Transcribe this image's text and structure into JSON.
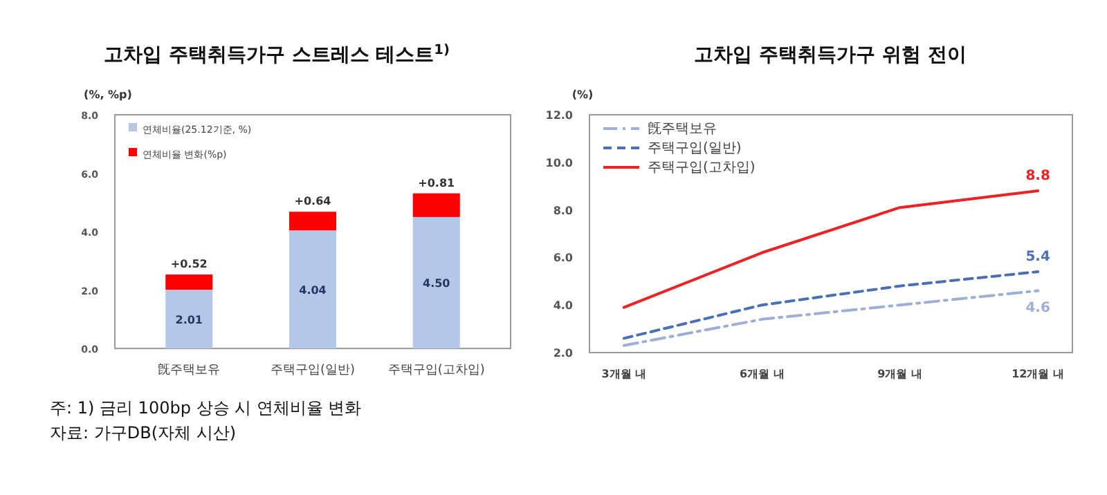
{
  "chart_data": [
    {
      "type": "bar",
      "stacked": true,
      "title": "고차입 주택취득가구 스트레스 테스트$^{1)}$",
      "ylabel": "(%, %p)",
      "categories": [
        "旣주택보유",
        "주택구입(일반)",
        "주택구입(고차입)"
      ],
      "series": [
        {
          "name": "연체비율(25.12기준, %)",
          "color": "#b4c7e7",
          "values": [
            2.01,
            4.04,
            4.5
          ],
          "value_labels": [
            "2.01",
            "4.04",
            "4.50"
          ]
        },
        {
          "name": "연체비율 변화(%p)",
          "color": "#ff0000",
          "values": [
            0.52,
            0.64,
            0.81
          ],
          "value_labels": [
            "+0.52",
            "+0.64",
            "+0.81"
          ]
        }
      ],
      "ylim": [
        0,
        8
      ],
      "yticks": [
        {
          "value": 0,
          "label": "0.0"
        },
        {
          "value": 2,
          "label": "2.0"
        },
        {
          "value": 4,
          "label": "4.0"
        },
        {
          "value": 6,
          "label": "6.0"
        },
        {
          "value": 8,
          "label": "8.0"
        }
      ],
      "legend": "top left",
      "grid": false,
      "annotations": [
        "주: 1) 금리 100bp 상승 시 연체비율 변화",
        "자료: 가구DB(자체 시산)"
      ]
    },
    {
      "type": "line",
      "title": "고차입 주택취득가구 위험 전이",
      "ylabel": "(%)",
      "categories": [
        "3개월 내",
        "6개월 내",
        "9개월 내",
        "12개월 내"
      ],
      "series": [
        {
          "name": "旣주택보유",
          "color": "#9dafd6",
          "line_style": "dashdot",
          "values": [
            2.3,
            3.4,
            4.0,
            4.6
          ],
          "value_labels": [
            null,
            null,
            null,
            "4.6"
          ]
        },
        {
          "name": "주택구입(일반)",
          "color": "#4a6fb5",
          "line_style": "dashed",
          "values": [
            2.6,
            4.0,
            4.8,
            5.4
          ],
          "value_labels": [
            null,
            null,
            null,
            "5.4"
          ]
        },
        {
          "name": "주택구입(고차입)",
          "color": "#ee2222",
          "line_style": "solid",
          "values": [
            3.9,
            6.2,
            8.1,
            8.8
          ],
          "value_labels": [
            null,
            null,
            null,
            "8.8"
          ]
        }
      ],
      "ylim": [
        2,
        12
      ],
      "yticks": [
        {
          "value": 2,
          "label": "2.0"
        },
        {
          "value": 4,
          "label": "4.0"
        },
        {
          "value": 6,
          "label": "6.0"
        },
        {
          "value": 8,
          "label": "8.0"
        },
        {
          "value": 10,
          "label": "10.0"
        },
        {
          "value": 12,
          "label": "12.0"
        }
      ],
      "legend": "top left",
      "grid": false
    }
  ]
}
